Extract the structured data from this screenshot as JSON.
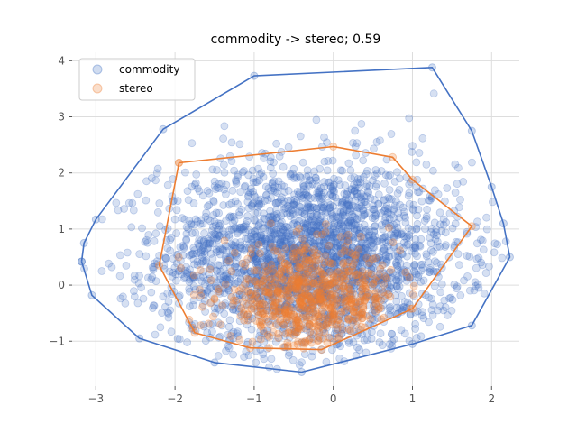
{
  "chart_data": {
    "type": "scatter",
    "title": "commodity -> stereo; 0.59",
    "xlabel": "",
    "ylabel": "",
    "xlim": [
      -3.3,
      2.35
    ],
    "ylim": [
      -1.8,
      4.15
    ],
    "xticks": [
      -3,
      -2,
      -1,
      0,
      1,
      2
    ],
    "yticks": [
      -1,
      0,
      1,
      2,
      3,
      4
    ],
    "grid": true,
    "legend_position": "top-left",
    "series": [
      {
        "name": "commodity",
        "color": "#4472c4",
        "center": [
          -0.3,
          0.5
        ],
        "spread": [
          0.95,
          0.85
        ],
        "point_count": 2600,
        "hull": [
          [
            -3.18,
            0.42
          ],
          [
            -3.15,
            0.75
          ],
          [
            -3.0,
            1.17
          ],
          [
            -2.15,
            2.78
          ],
          [
            -1.0,
            3.73
          ],
          [
            1.25,
            3.88
          ],
          [
            1.75,
            2.75
          ],
          [
            2.0,
            1.75
          ],
          [
            2.15,
            1.1
          ],
          [
            2.23,
            0.5
          ],
          [
            1.75,
            -0.72
          ],
          [
            1.0,
            -1.05
          ],
          [
            -0.4,
            -1.55
          ],
          [
            -1.5,
            -1.38
          ],
          [
            -2.45,
            -0.95
          ],
          [
            -3.05,
            -0.18
          ],
          [
            -3.18,
            0.42
          ]
        ]
      },
      {
        "name": "stereo",
        "color": "#ed7d31",
        "center": [
          -0.3,
          -0.25
        ],
        "spread": [
          0.55,
          0.45
        ],
        "point_count": 700,
        "hull": [
          [
            -1.95,
            2.18
          ],
          [
            0.0,
            2.47
          ],
          [
            0.75,
            2.28
          ],
          [
            1.0,
            1.88
          ],
          [
            1.75,
            1.05
          ],
          [
            1.0,
            -0.42
          ],
          [
            -0.15,
            -1.15
          ],
          [
            -1.05,
            -1.12
          ],
          [
            -1.75,
            -0.85
          ],
          [
            -2.2,
            0.35
          ],
          [
            -1.95,
            2.18
          ]
        ]
      }
    ]
  }
}
